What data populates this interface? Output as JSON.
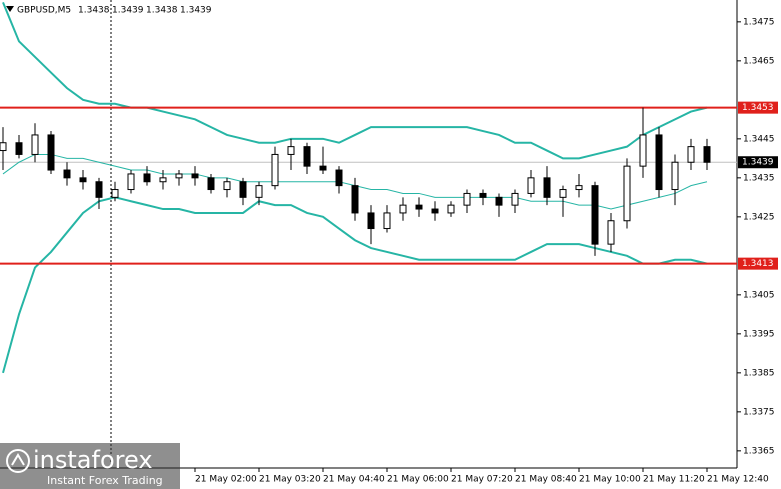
{
  "chart_data": {
    "type": "candlestick",
    "symbol": "GBPUSD,M5",
    "ohlc": [
      1.3438,
      1.3439,
      1.3438,
      1.3439
    ],
    "categories": [
      null,
      null,
      null,
      null,
      null,
      null,
      null,
      null,
      null,
      null,
      null,
      null,
      "21 May 02:00",
      null,
      null,
      null,
      "21 May 03:20",
      null,
      null,
      null,
      "21 May 04:40",
      null,
      null,
      null,
      "21 May 06:00",
      null,
      null,
      null,
      "21 May 07:20",
      null,
      null,
      null,
      "21 May 08:40",
      null,
      null,
      null,
      "21 May 10:00",
      null,
      null,
      null,
      "21 May 11:20",
      null,
      null,
      null,
      "21 May 12:40"
    ],
    "candles": {
      "open": [
        1.3442,
        1.3444,
        1.3441,
        1.3446,
        1.3437,
        1.3435,
        1.3434,
        1.343,
        1.3432,
        1.3436,
        1.3434,
        1.3435,
        1.3436,
        1.3435,
        1.3432,
        1.3434,
        1.343,
        1.3433,
        1.3441,
        1.3443,
        1.3438,
        1.3437,
        1.3433,
        1.3426,
        1.3422,
        1.3426,
        1.3428,
        1.3427,
        1.3426,
        1.3428,
        1.3431,
        1.343,
        1.3428,
        1.3431,
        1.3435,
        1.343,
        1.3432,
        1.3433,
        1.3418,
        1.3424,
        1.3438,
        1.3446,
        1.3432,
        1.3439,
        1.3443
      ],
      "high": [
        1.3448,
        1.3446,
        1.3449,
        1.3447,
        1.3439,
        1.3437,
        1.3435,
        1.3434,
        1.3437,
        1.3438,
        1.3437,
        1.3437,
        1.3438,
        1.3436,
        1.3435,
        1.3435,
        1.3434,
        1.3443,
        1.3445,
        1.3444,
        1.3443,
        1.3438,
        1.3435,
        1.3428,
        1.3428,
        1.343,
        1.343,
        1.3429,
        1.3429,
        1.3432,
        1.3432,
        1.3431,
        1.3432,
        1.3437,
        1.3438,
        1.3433,
        1.3436,
        1.3434,
        1.3426,
        1.344,
        1.3453,
        1.3448,
        1.3441,
        1.3445,
        1.3445
      ],
      "low": [
        1.3437,
        1.344,
        1.3439,
        1.3436,
        1.3433,
        1.3432,
        1.3427,
        1.3429,
        1.3431,
        1.3433,
        1.3432,
        1.3433,
        1.3433,
        1.3431,
        1.343,
        1.3428,
        1.3428,
        1.3432,
        1.3437,
        1.3436,
        1.3436,
        1.3431,
        1.3424,
        1.3418,
        1.3421,
        1.3424,
        1.3425,
        1.3424,
        1.3425,
        1.3426,
        1.3428,
        1.3425,
        1.3426,
        1.343,
        1.3428,
        1.3425,
        1.343,
        1.3415,
        1.3416,
        1.3422,
        1.3435,
        1.343,
        1.3428,
        1.3437,
        1.3437
      ],
      "close": [
        1.3444,
        1.3441,
        1.3446,
        1.3437,
        1.3435,
        1.3434,
        1.343,
        1.3432,
        1.3436,
        1.3434,
        1.3435,
        1.3436,
        1.3435,
        1.3432,
        1.3434,
        1.343,
        1.3433,
        1.3441,
        1.3443,
        1.3438,
        1.3437,
        1.3433,
        1.3426,
        1.3422,
        1.3426,
        1.3428,
        1.3427,
        1.3426,
        1.3428,
        1.3431,
        1.343,
        1.3428,
        1.3431,
        1.3435,
        1.343,
        1.3432,
        1.3433,
        1.3418,
        1.3424,
        1.3438,
        1.3446,
        1.3432,
        1.3439,
        1.3443,
        1.3439
      ]
    },
    "series": [
      {
        "color": "#26b5a5",
        "values": [
          1.348,
          1.347,
          1.3466,
          1.3462,
          1.3458,
          1.3455,
          1.3454,
          1.3454,
          1.3453,
          1.3453,
          1.3452,
          1.3451,
          1.345,
          1.3448,
          1.3446,
          1.3445,
          1.3444,
          1.3444,
          1.3445,
          1.3445,
          1.3445,
          1.3444,
          1.3446,
          1.3448,
          1.3448,
          1.3448,
          1.3448,
          1.3448,
          1.3448,
          1.3448,
          1.3447,
          1.3446,
          1.3444,
          1.3444,
          1.3442,
          1.344,
          1.344,
          1.3441,
          1.3442,
          1.3443,
          1.3446,
          1.3448,
          1.345,
          1.3452,
          1.3453
        ]
      },
      {
        "color": "#26b5a5",
        "values": [
          1.3436,
          1.3439,
          1.3441,
          1.3441,
          1.344,
          1.344,
          1.3439,
          1.3438,
          1.3437,
          1.3437,
          1.3436,
          1.3436,
          1.3436,
          1.3435,
          1.3435,
          1.3434,
          1.3434,
          1.3434,
          1.3434,
          1.3434,
          1.3434,
          1.3434,
          1.3433,
          1.3432,
          1.3432,
          1.3431,
          1.3431,
          1.343,
          1.343,
          1.343,
          1.343,
          1.343,
          1.343,
          1.3429,
          1.3429,
          1.3429,
          1.3428,
          1.3428,
          1.3427,
          1.3428,
          1.3429,
          1.343,
          1.3431,
          1.3433,
          1.3434
        ]
      },
      {
        "color": "#26b5a5",
        "values": [
          1.3385,
          1.34,
          1.3412,
          1.3416,
          1.3421,
          1.3426,
          1.3429,
          1.343,
          1.3429,
          1.3428,
          1.3427,
          1.3427,
          1.3426,
          1.3426,
          1.3426,
          1.3426,
          1.3429,
          1.3428,
          1.3428,
          1.3426,
          1.3425,
          1.3422,
          1.3419,
          1.3417,
          1.3416,
          1.3415,
          1.3414,
          1.3414,
          1.3414,
          1.3414,
          1.3414,
          1.3414,
          1.3414,
          1.3416,
          1.3418,
          1.3418,
          1.3418,
          1.3417,
          1.3416,
          1.3415,
          1.3413,
          1.3413,
          1.3414,
          1.3414,
          1.3413
        ]
      }
    ],
    "levels": [
      1.3453,
      1.3413
    ],
    "level_color": "#e0201b",
    "last_price": 1.3439,
    "ylim": [
      1.33606,
      1.34806
    ],
    "yticks": [
      1.3475,
      1.3465,
      1.3445,
      1.3435,
      1.3425,
      1.3405,
      1.3395,
      1.3385,
      1.3375,
      1.3365
    ]
  },
  "watermark": {
    "brand": "instaforex",
    "tagline": "Instant Forex Trading"
  }
}
